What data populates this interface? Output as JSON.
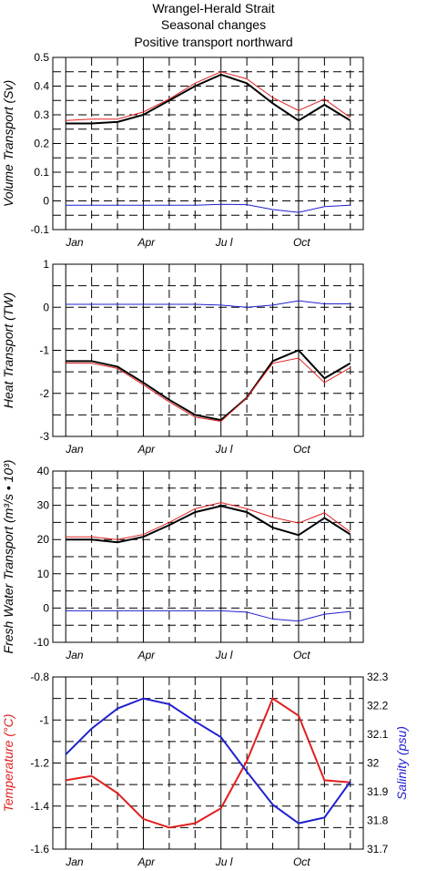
{
  "titles": [
    "Wrangel-Herald Strait",
    "Seasonal changes",
    "Positive transport northward"
  ],
  "months": [
    "Jan",
    "Apr",
    "Ju l",
    "Oct"
  ],
  "colors": {
    "black": "#000000",
    "red": "#e02020",
    "blue": "#2020d0",
    "grid": "#000000"
  },
  "chart_data": [
    {
      "type": "line",
      "ylabel": "Volume Transport (Sv)",
      "ylim": [
        -0.1,
        0.5
      ],
      "yticks": [
        "0.5",
        "0.4",
        "0.3",
        "0.2",
        "0.1",
        "0",
        "-0.1"
      ],
      "ytick_values": [
        0.5,
        0.4,
        0.3,
        0.2,
        0.1,
        0,
        -0.1
      ],
      "x": [
        1,
        2,
        3,
        4,
        5,
        6,
        7,
        8,
        9,
        10,
        11,
        12
      ],
      "series": [
        {
          "color": "black",
          "values": [
            0.27,
            0.27,
            0.275,
            0.3,
            0.35,
            0.4,
            0.44,
            0.41,
            0.34,
            0.28,
            0.335,
            0.28
          ]
        },
        {
          "color": "red",
          "values": [
            0.28,
            0.285,
            0.285,
            0.31,
            0.355,
            0.41,
            0.45,
            0.425,
            0.36,
            0.315,
            0.355,
            0.29
          ]
        },
        {
          "color": "blue",
          "values": [
            -0.015,
            -0.015,
            -0.015,
            -0.015,
            -0.015,
            -0.015,
            -0.012,
            -0.013,
            -0.03,
            -0.04,
            -0.02,
            -0.015
          ]
        }
      ]
    },
    {
      "type": "line",
      "ylabel": "Heat Transport (TW)",
      "ylim": [
        -3,
        1
      ],
      "yticks": [
        "1",
        "0",
        "-1",
        "-2",
        "-3"
      ],
      "ytick_values": [
        1,
        0,
        -1,
        -2,
        -3
      ],
      "x": [
        1,
        2,
        3,
        4,
        5,
        6,
        7,
        8,
        9,
        10,
        11,
        12
      ],
      "series": [
        {
          "color": "black",
          "values": [
            -1.25,
            -1.25,
            -1.38,
            -1.75,
            -2.15,
            -2.5,
            -2.62,
            -2.1,
            -1.25,
            -1.0,
            -1.65,
            -1.3
          ]
        },
        {
          "color": "red",
          "values": [
            -1.3,
            -1.3,
            -1.42,
            -1.8,
            -2.2,
            -2.55,
            -2.65,
            -2.1,
            -1.3,
            -1.18,
            -1.75,
            -1.4
          ]
        },
        {
          "color": "blue",
          "values": [
            0.07,
            0.07,
            0.07,
            0.07,
            0.07,
            0.07,
            0.05,
            0.0,
            0.05,
            0.15,
            0.08,
            0.08
          ]
        }
      ]
    },
    {
      "type": "line",
      "ylabel": "Fresh Water Transport (m³/s • 10³)",
      "ylim": [
        -10,
        40
      ],
      "yticks": [
        "40",
        "30",
        "20",
        "10",
        "0",
        "-10"
      ],
      "ytick_values": [
        40,
        30,
        20,
        10,
        0,
        -10
      ],
      "x": [
        1,
        2,
        3,
        4,
        5,
        6,
        7,
        8,
        9,
        10,
        11,
        12
      ],
      "series": [
        {
          "color": "black",
          "values": [
            20.0,
            20.0,
            19.2,
            20.8,
            24.2,
            28.0,
            29.8,
            28.0,
            23.5,
            21.3,
            26.3,
            21.5
          ]
        },
        {
          "color": "red",
          "values": [
            20.8,
            20.8,
            20.0,
            21.5,
            25.0,
            29.0,
            30.8,
            29.0,
            26.5,
            24.8,
            27.8,
            22.2
          ]
        },
        {
          "color": "blue",
          "values": [
            -0.8,
            -0.8,
            -0.8,
            -0.8,
            -0.8,
            -0.8,
            -0.8,
            -1.2,
            -3.2,
            -3.8,
            -1.8,
            -1.0
          ]
        }
      ]
    },
    {
      "type": "line",
      "ylabel": "Temperature (°C)",
      "ylabel_right": "Salinity (psu)",
      "ylim": [
        -1.6,
        -0.8
      ],
      "ylim_right": [
        31.7,
        32.3
      ],
      "yticks": [
        "-0.8",
        "-1",
        "-1.2",
        "-1.4",
        "-1.6"
      ],
      "ytick_values": [
        -0.8,
        -1.0,
        -1.2,
        -1.4,
        -1.6
      ],
      "yticks_right": [
        "32.3",
        "32.2",
        "32.1",
        "32",
        "31.9",
        "31.8",
        "31.7"
      ],
      "ytick_values_right": [
        32.3,
        32.2,
        32.1,
        32.0,
        31.9,
        31.8,
        31.7
      ],
      "x": [
        1,
        2,
        3,
        4,
        5,
        6,
        7,
        8,
        9,
        10,
        11,
        12
      ],
      "series": [
        {
          "color": "red",
          "axis": "left",
          "values": [
            -1.28,
            -1.26,
            -1.34,
            -1.46,
            -1.5,
            -1.48,
            -1.41,
            -1.19,
            -0.9,
            -0.98,
            -1.28,
            -1.29
          ]
        },
        {
          "color": "blue",
          "axis": "right",
          "values": [
            32.03,
            32.12,
            32.19,
            32.225,
            32.205,
            32.145,
            32.09,
            31.97,
            31.855,
            31.79,
            31.81,
            31.935
          ]
        }
      ]
    }
  ]
}
